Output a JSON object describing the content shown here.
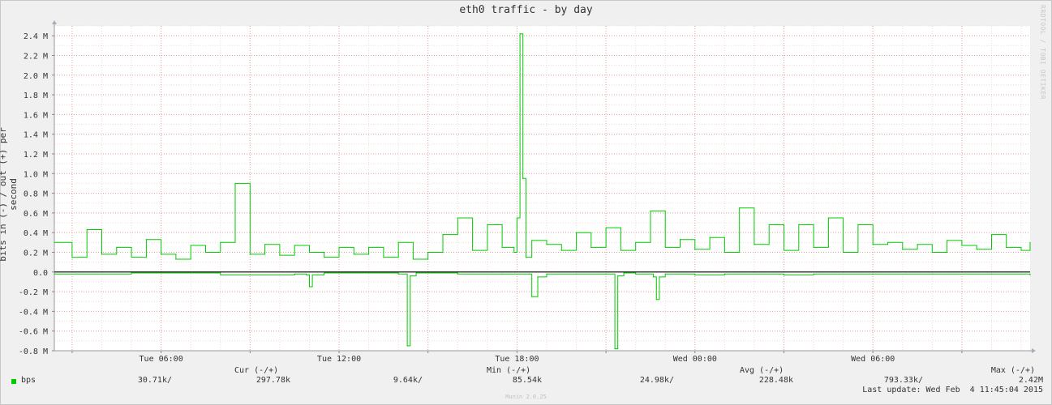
{
  "chart_data": {
    "type": "line",
    "title": "eth0 traffic - by day",
    "ylabel": "bits in (-) / out (+) per second",
    "y_ticks": [
      "2.4 M",
      "2.2 M",
      "2.0 M",
      "1.8 M",
      "1.6 M",
      "1.4 M",
      "1.2 M",
      "1.0 M",
      "0.8 M",
      "0.6 M",
      "0.4 M",
      "0.2 M",
      "0.0",
      "-0.2 M",
      "-0.4 M",
      "-0.6 M",
      "-0.8 M"
    ],
    "y_tick_values": [
      2.4,
      2.2,
      2.0,
      1.8,
      1.6,
      1.4,
      1.2,
      1.0,
      0.8,
      0.6,
      0.4,
      0.2,
      0.0,
      -0.2,
      -0.4,
      -0.6,
      -0.8
    ],
    "ylim": [
      -0.8,
      2.5
    ],
    "y_unit": "M",
    "x_ticks": [
      "Tue 06:00",
      "Tue 12:00",
      "Tue 18:00",
      "Wed 00:00",
      "Wed 06:00"
    ],
    "x_tick_hours": [
      6,
      12,
      18,
      24,
      30
    ],
    "xlim_hours": [
      2.4,
      35.3
    ],
    "grid": true,
    "series": [
      {
        "name": "bps",
        "color": "#00cc00",
        "role": "out",
        "x_hours": [
          2.4,
          3.0,
          3.5,
          4.0,
          4.5,
          5.0,
          5.5,
          6.0,
          6.5,
          7.0,
          7.5,
          8.0,
          8.5,
          9.0,
          9.5,
          10.0,
          10.5,
          11.0,
          11.5,
          12.0,
          12.5,
          13.0,
          13.5,
          14.0,
          14.5,
          15.0,
          15.5,
          16.0,
          16.5,
          17.0,
          17.5,
          17.9,
          18.0,
          18.1,
          18.2,
          18.3,
          18.5,
          19.0,
          19.5,
          20.0,
          20.5,
          21.0,
          21.5,
          22.0,
          22.5,
          23.0,
          23.5,
          24.0,
          24.5,
          25.0,
          25.5,
          26.0,
          26.5,
          27.0,
          27.5,
          28.0,
          28.5,
          29.0,
          29.5,
          30.0,
          30.5,
          31.0,
          31.5,
          32.0,
          32.5,
          33.0,
          33.5,
          34.0,
          34.5,
          35.0,
          35.3
        ],
        "values": [
          0.3,
          0.15,
          0.43,
          0.18,
          0.25,
          0.15,
          0.33,
          0.18,
          0.13,
          0.27,
          0.2,
          0.3,
          0.9,
          0.18,
          0.28,
          0.17,
          0.27,
          0.2,
          0.15,
          0.25,
          0.18,
          0.25,
          0.15,
          0.3,
          0.13,
          0.2,
          0.38,
          0.55,
          0.22,
          0.48,
          0.25,
          0.2,
          0.55,
          2.42,
          0.95,
          0.15,
          0.32,
          0.28,
          0.22,
          0.4,
          0.25,
          0.45,
          0.22,
          0.3,
          0.62,
          0.25,
          0.33,
          0.23,
          0.35,
          0.2,
          0.65,
          0.28,
          0.48,
          0.22,
          0.48,
          0.25,
          0.55,
          0.2,
          0.48,
          0.28,
          0.3,
          0.23,
          0.28,
          0.2,
          0.32,
          0.27,
          0.23,
          0.38,
          0.25,
          0.22,
          0.3
        ]
      },
      {
        "name": "bps",
        "color": "#00cc00",
        "role": "in",
        "x_hours": [
          2.4,
          5.0,
          8.0,
          10.5,
          10.9,
          11.0,
          11.1,
          11.5,
          14.0,
          14.3,
          14.4,
          14.6,
          16.0,
          17.5,
          18.4,
          18.5,
          18.7,
          19.0,
          20.0,
          21.0,
          21.3,
          21.4,
          21.6,
          22.0,
          22.6,
          22.7,
          22.8,
          23.0,
          24.0,
          25.0,
          27.0,
          28.0,
          30.0,
          32.0,
          34.0,
          35.3
        ],
        "values": [
          -0.02,
          -0.01,
          -0.03,
          -0.02,
          -0.03,
          -0.15,
          -0.03,
          -0.01,
          -0.02,
          -0.75,
          -0.04,
          -0.01,
          -0.02,
          -0.02,
          -0.02,
          -0.25,
          -0.05,
          -0.02,
          -0.02,
          -0.02,
          -0.78,
          -0.04,
          -0.01,
          -0.02,
          -0.05,
          -0.28,
          -0.05,
          -0.02,
          -0.03,
          -0.02,
          -0.03,
          -0.02,
          -0.02,
          -0.02,
          -0.02,
          -0.03
        ]
      }
    ]
  },
  "legend": {
    "series_label": "bps",
    "headers": {
      "cur": "Cur (-/+)",
      "min": "Min (-/+)",
      "avg": "Avg (-/+)",
      "max": "Max (-/+)"
    },
    "cur_in": "30.71k/",
    "cur_out": "297.78k",
    "min_in": "9.64k/",
    "min_out": "85.54k",
    "avg_in": "24.98k/",
    "avg_out": "228.48k",
    "max_in": "793.33k/",
    "max_out": "2.42M",
    "last_update": "Last update: Wed Feb  4 11:45:04 2015"
  },
  "side_brand": "RRDTOOL / TOBI OETIKER",
  "version": "Munin 2.0.25"
}
